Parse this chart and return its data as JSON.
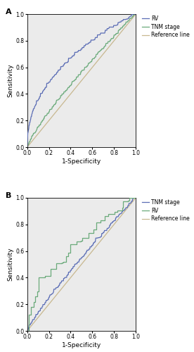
{
  "panel_A": {
    "title": "A",
    "xlabel": "1-Specificity",
    "ylabel": "Sensitivity",
    "xlim": [
      0.0,
      1.0
    ],
    "ylim": [
      0.0,
      1.0
    ],
    "xticks": [
      0.0,
      0.2,
      0.4,
      0.6,
      0.8,
      1.0
    ],
    "yticks": [
      0.0,
      0.2,
      0.4,
      0.6,
      0.8,
      1.0
    ],
    "legend": [
      "RV",
      "TNM stage",
      "Reference line"
    ],
    "rv_color": "#5b6db5",
    "tnm_color": "#6aaa7a",
    "ref_color": "#c8b890",
    "rv_auc": 0.688,
    "tnm_auc": 0.544
  },
  "panel_B": {
    "title": "B",
    "xlabel": "1-Specificity",
    "ylabel": "Sensitivity",
    "xlim": [
      0.0,
      1.0
    ],
    "ylim": [
      0.0,
      1.0
    ],
    "xticks": [
      0.0,
      0.2,
      0.4,
      0.6,
      0.8,
      1.0
    ],
    "yticks": [
      0.0,
      0.2,
      0.4,
      0.6,
      0.8,
      1.0
    ],
    "legend": [
      "TNM stage",
      "RV",
      "Reference line"
    ],
    "tnm_color": "#5b6db5",
    "rv_color": "#6aaa7a",
    "ref_color": "#c8b890",
    "rv_auc": 0.645,
    "tnm_auc": 0.532
  },
  "bg_color": "#ebebeb",
  "tick_fontsize": 5.5,
  "label_fontsize": 6.5,
  "legend_fontsize": 5.5,
  "title_fontsize": 8,
  "linewidth": 0.9
}
